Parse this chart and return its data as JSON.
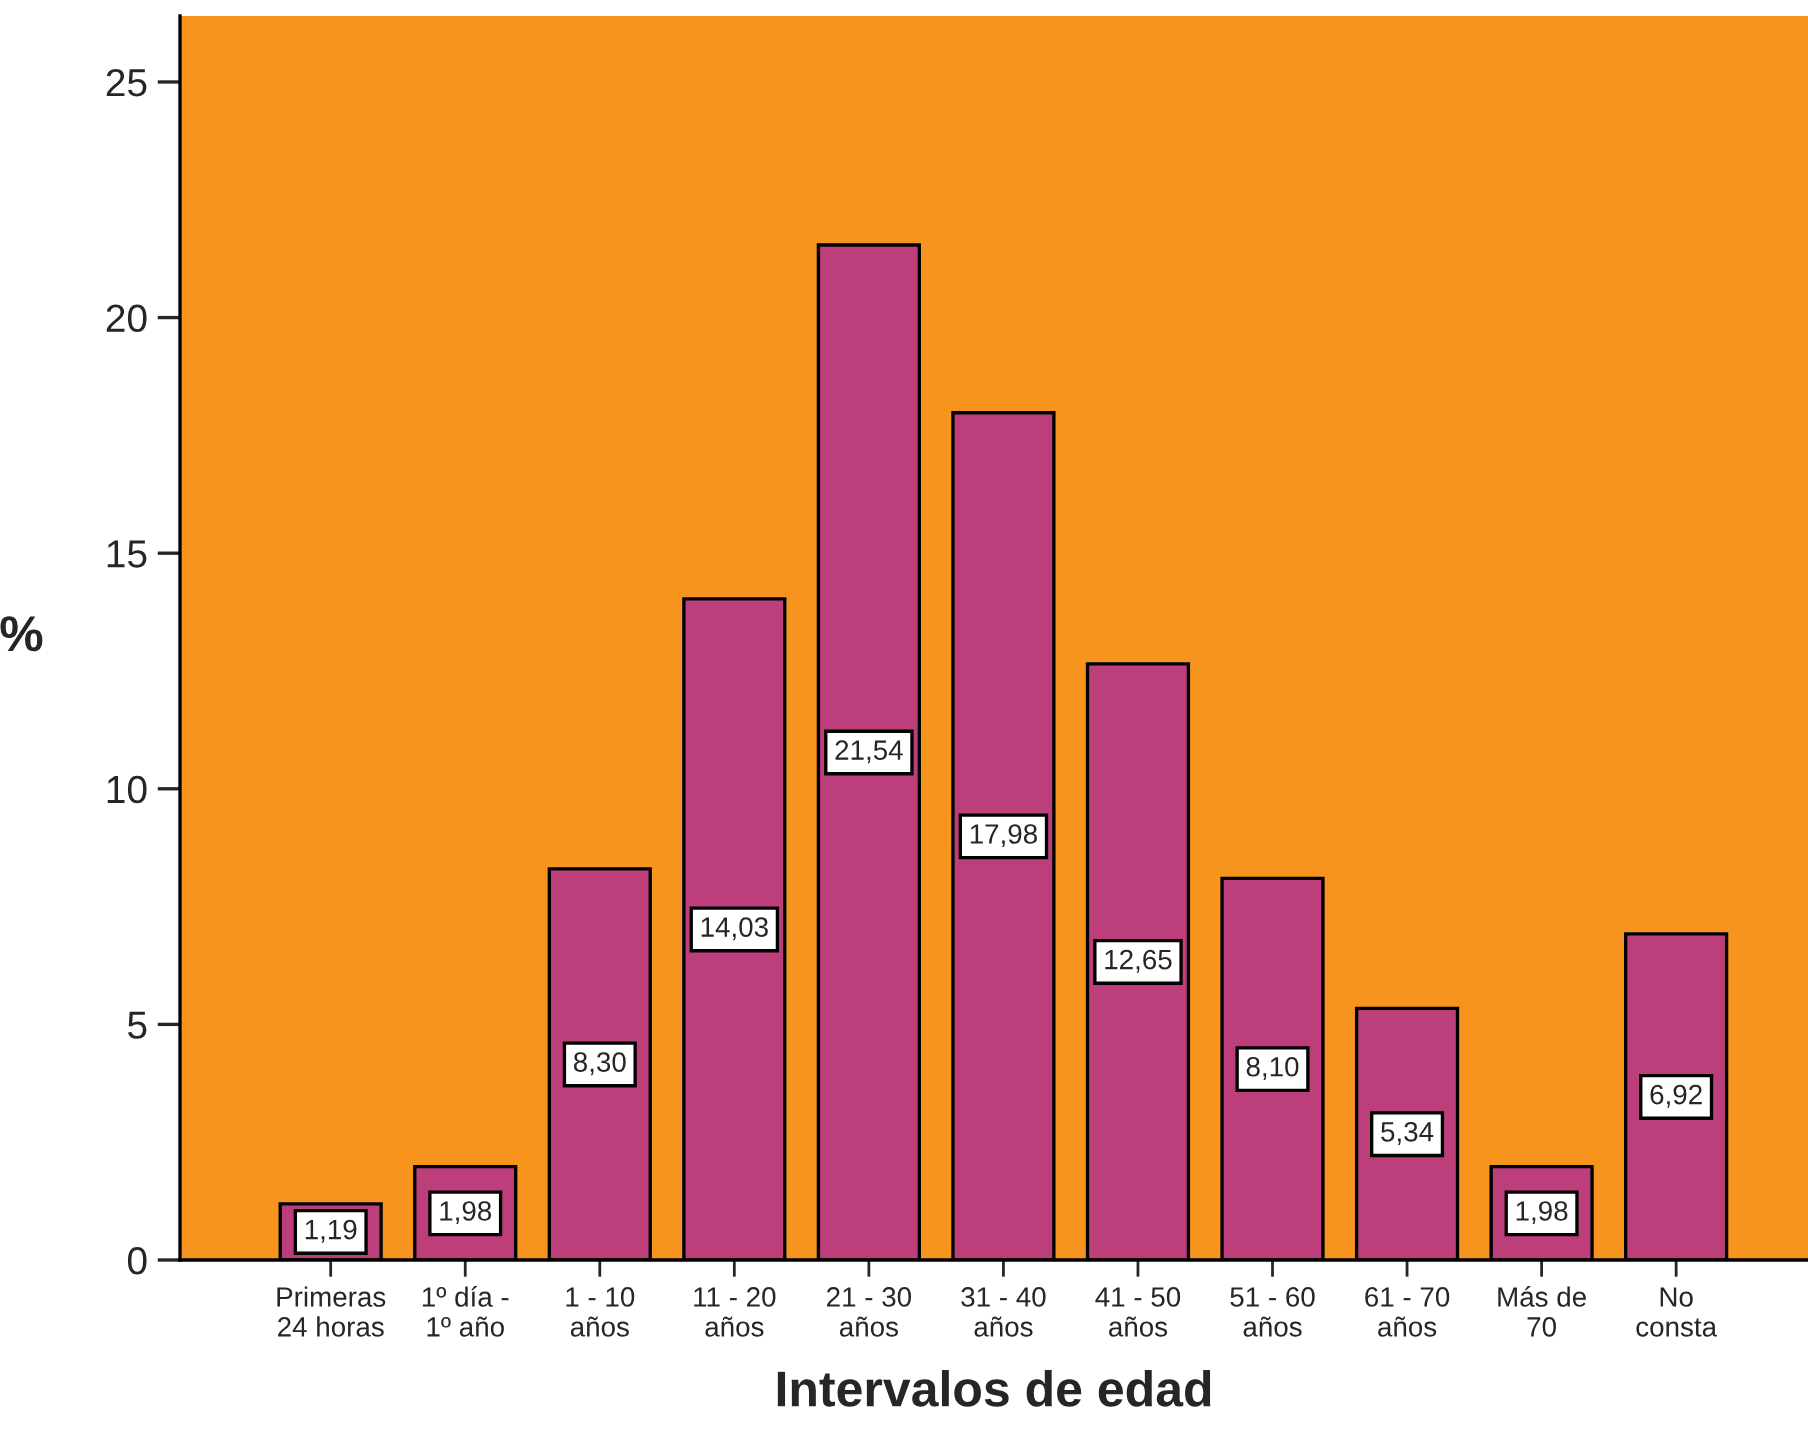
{
  "chart_data": {
    "type": "bar",
    "xlabel": "Intervalos de edad",
    "ylabel": "%",
    "categories": [
      "Primeras\n24 horas",
      "1º día -\n1º año",
      "1 - 10\naños",
      "11 - 20\naños",
      "21 - 30\naños",
      "31 - 40\naños",
      "41 - 50\naños",
      "51 - 60\naños",
      "61 - 70\naños",
      "Más de\n70",
      "No\nconsta"
    ],
    "values": [
      1.19,
      1.98,
      8.3,
      14.03,
      21.54,
      17.98,
      12.65,
      8.1,
      5.34,
      1.98,
      6.92
    ],
    "value_labels": [
      "1,19",
      "1,98",
      "8,30",
      "14,03",
      "21,54",
      "17,98",
      "12,65",
      "8,10",
      "5,34",
      "1,98",
      "6,92"
    ],
    "color": "#bc3f7c",
    "ylim": [
      0,
      26.4
    ],
    "yticks": [
      0,
      5,
      10,
      15,
      20,
      25
    ],
    "grid": false,
    "legend": false
  }
}
